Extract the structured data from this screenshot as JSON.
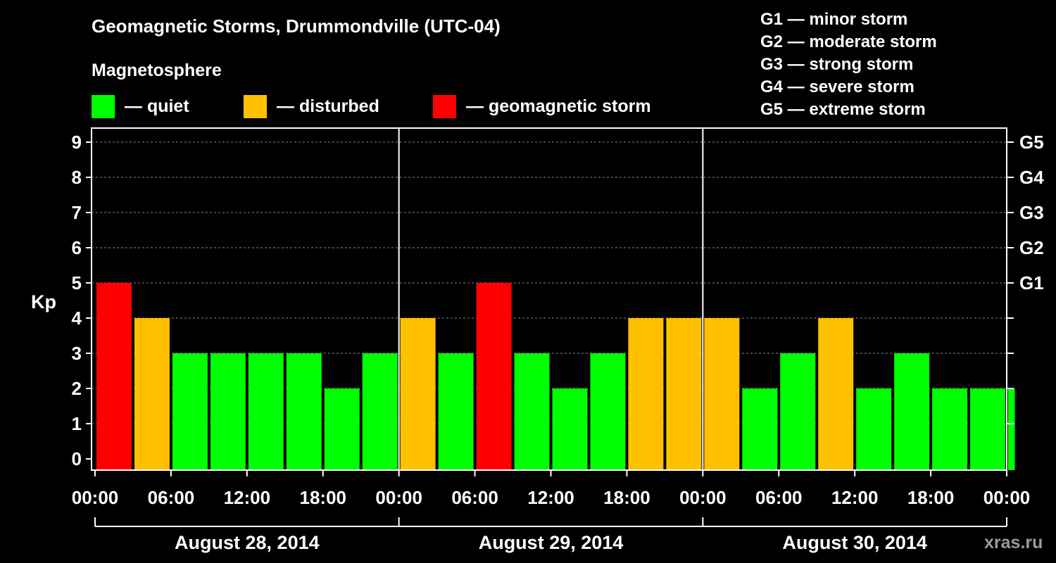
{
  "header": {
    "title": "Geomagnetic Storms, Drummondville (UTC-04)",
    "subtitle": "Magnetosphere"
  },
  "legend": [
    {
      "label": "— quiet",
      "color": "#00ff00"
    },
    {
      "label": "— disturbed",
      "color": "#ffc000"
    },
    {
      "label": "— geomagnetic storm",
      "color": "#ff0000"
    }
  ],
  "storm_scale": [
    "G1 — minor storm",
    "G2 — moderate storm",
    "G3 — strong storm",
    "G4 — severe storm",
    "G5 — extreme storm"
  ],
  "watermark": "xras.ru",
  "chart_data": {
    "type": "bar",
    "ylabel": "Kp",
    "ylim": [
      0,
      9
    ],
    "yticks": [
      0,
      1,
      2,
      3,
      4,
      5,
      6,
      7,
      8,
      9
    ],
    "right_axis_labels": [
      {
        "kp": 5,
        "label": "G1"
      },
      {
        "kp": 6,
        "label": "G2"
      },
      {
        "kp": 7,
        "label": "G3"
      },
      {
        "kp": 8,
        "label": "G4"
      },
      {
        "kp": 9,
        "label": "G5"
      }
    ],
    "x_tick_labels": [
      "00:00",
      "06:00",
      "12:00",
      "18:00",
      "00:00",
      "06:00",
      "12:00",
      "18:00",
      "00:00",
      "06:00",
      "12:00",
      "18:00",
      "00:00"
    ],
    "days": [
      "August 28, 2014",
      "August 29, 2014",
      "August 30, 2014"
    ],
    "x_range_hours": [
      0,
      72
    ],
    "grid": "horizontal dashed",
    "colors": {
      "quiet": "#00ff00",
      "disturbed": "#ffc000",
      "storm": "#ff0000"
    },
    "bars": [
      {
        "start": 0,
        "end": 3,
        "kp": 5,
        "level": "storm"
      },
      {
        "start": 3,
        "end": 6,
        "kp": 4,
        "level": "disturbed"
      },
      {
        "start": 6,
        "end": 9,
        "kp": 3,
        "level": "quiet"
      },
      {
        "start": 9,
        "end": 12,
        "kp": 3,
        "level": "quiet"
      },
      {
        "start": 12,
        "end": 15,
        "kp": 3,
        "level": "quiet"
      },
      {
        "start": 15,
        "end": 18,
        "kp": 3,
        "level": "quiet"
      },
      {
        "start": 18,
        "end": 21,
        "kp": 2,
        "level": "quiet"
      },
      {
        "start": 21,
        "end": 24,
        "kp": 3,
        "level": "quiet"
      },
      {
        "start": 24,
        "end": 27,
        "kp": 4,
        "level": "disturbed"
      },
      {
        "start": 27,
        "end": 30,
        "kp": 3,
        "level": "quiet"
      },
      {
        "start": 30,
        "end": 33,
        "kp": 5,
        "level": "storm"
      },
      {
        "start": 33,
        "end": 36,
        "kp": 3,
        "level": "quiet"
      },
      {
        "start": 36,
        "end": 39,
        "kp": 2,
        "level": "quiet"
      },
      {
        "start": 39,
        "end": 42,
        "kp": 3,
        "level": "quiet"
      },
      {
        "start": 42,
        "end": 45,
        "kp": 4,
        "level": "disturbed"
      },
      {
        "start": 45,
        "end": 48,
        "kp": 4,
        "level": "disturbed"
      },
      {
        "start": 48,
        "end": 51,
        "kp": 4,
        "level": "disturbed"
      },
      {
        "start": 51,
        "end": 54,
        "kp": 2,
        "level": "quiet"
      },
      {
        "start": 54,
        "end": 57,
        "kp": 3,
        "level": "quiet"
      },
      {
        "start": 57,
        "end": 60,
        "kp": 4,
        "level": "disturbed"
      },
      {
        "start": 60,
        "end": 63,
        "kp": 2,
        "level": "quiet"
      },
      {
        "start": 63,
        "end": 66,
        "kp": 3,
        "level": "quiet"
      },
      {
        "start": 66,
        "end": 69,
        "kp": 2,
        "level": "quiet"
      },
      {
        "start": 69,
        "end": 72,
        "kp": 2,
        "level": "quiet"
      },
      {
        "start": 72,
        "end": 72.75,
        "kp": 2,
        "level": "quiet"
      }
    ]
  }
}
